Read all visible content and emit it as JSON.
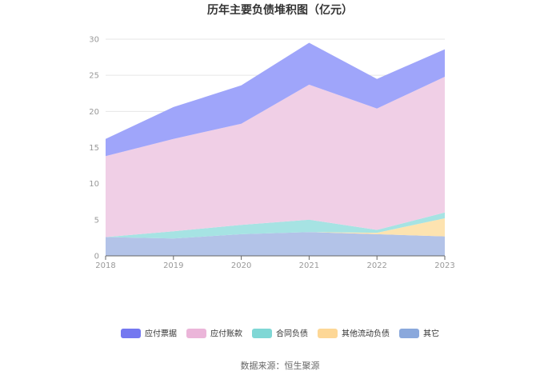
{
  "chart_data": {
    "type": "area",
    "stacked": true,
    "title": "历年主要负债堆积图（亿元）",
    "x": [
      "2018",
      "2019",
      "2020",
      "2021",
      "2022",
      "2023"
    ],
    "ylim": [
      0,
      30
    ],
    "yticks": [
      0,
      5,
      10,
      15,
      20,
      25,
      30
    ],
    "grid": true,
    "legend_position": "bottom",
    "series": [
      {
        "name": "其它",
        "color": "#b3c3e8",
        "legend_color": "#8aa8dc",
        "values": [
          2.6,
          2.4,
          3.0,
          3.3,
          3.0,
          2.7
        ]
      },
      {
        "name": "其他流动负债",
        "color": "#fde3b0",
        "legend_color": "#fdd796",
        "values": [
          0.0,
          0.0,
          0.0,
          0.0,
          0.2,
          2.5
        ]
      },
      {
        "name": "合同负债",
        "color": "#a6e3e3",
        "legend_color": "#7fd7d5",
        "values": [
          0.0,
          1.0,
          1.3,
          1.7,
          0.4,
          0.8
        ]
      },
      {
        "name": "应付账款",
        "color": "#f0cfe6",
        "legend_color": "#ebb5d9",
        "values": [
          11.2,
          12.8,
          14.0,
          18.7,
          16.8,
          18.8
        ]
      },
      {
        "name": "应付票据",
        "color": "#9fa5fa",
        "legend_color": "#7478f0",
        "values": [
          2.4,
          4.4,
          5.3,
          5.8,
          4.1,
          3.8
        ]
      }
    ],
    "legend_order": [
      "应付票据",
      "应付账款",
      "合同负债",
      "其他流动负债",
      "其它"
    ]
  },
  "source": "数据来源：恒生聚源"
}
